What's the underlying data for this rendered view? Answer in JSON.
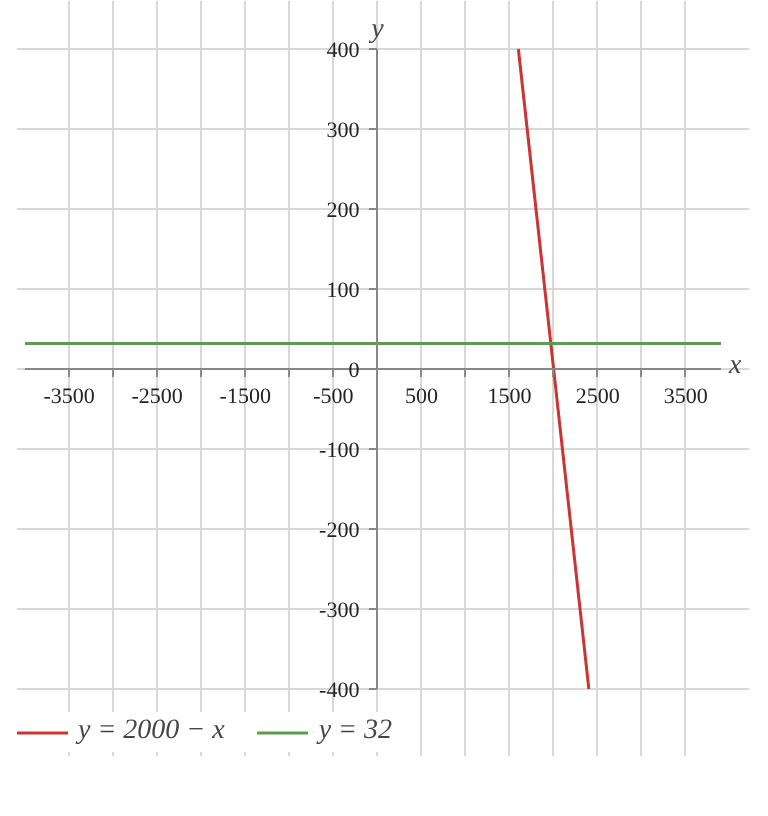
{
  "chart_data": {
    "type": "line",
    "xlabel": "x",
    "ylabel": "y",
    "xlim": [
      -4000,
      3900
    ],
    "ylim": [
      -400,
      400
    ],
    "xticks": [
      -3500,
      {
        "value": -3000,
        "label": null
      },
      -2500,
      {
        "value": -2000,
        "label": null
      },
      -1500,
      {
        "value": -1000,
        "label": null
      },
      -500,
      {
        "value": 0,
        "label": null
      },
      500,
      {
        "value": 1000,
        "label": null
      },
      1500,
      {
        "value": 2000,
        "label": null
      },
      2500,
      {
        "value": 3000,
        "label": null
      },
      3500
    ],
    "yticks": [
      -400,
      -300,
      -200,
      -100,
      0,
      100,
      200,
      300,
      400
    ],
    "series": [
      {
        "name": "y = 2000 − x",
        "color": "#cc3333",
        "x": [
          1600,
          2400
        ],
        "values": [
          400,
          -400
        ]
      },
      {
        "name": "y = 32",
        "color": "#5a9e4b",
        "x": [
          -4000,
          3900
        ],
        "values": [
          32,
          32
        ]
      }
    ],
    "grid": true,
    "legend": "bottom",
    "marker": "none",
    "line_style": "solid"
  }
}
